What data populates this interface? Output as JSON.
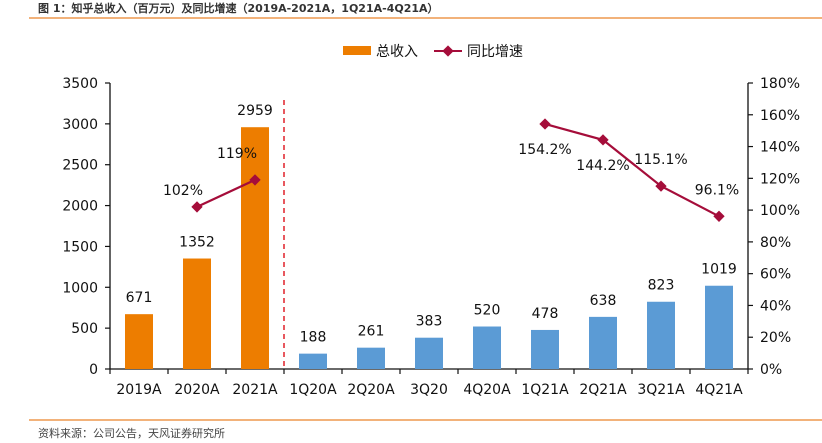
{
  "figure": {
    "title": "图 1：知乎总收入（百万元）及同比增速（2019A-2021A，1Q21A-4Q21A）",
    "source": "资料来源：公司公告，天风证券研究所"
  },
  "chart_data": {
    "type": "bar",
    "title": "",
    "categories": [
      "2019A",
      "2020A",
      "2021A",
      "1Q20A",
      "2Q20A",
      "3Q20",
      "4Q20A",
      "1Q21A",
      "2Q21A",
      "3Q21A",
      "4Q21A"
    ],
    "series": [
      {
        "name": "总收入",
        "type": "bar",
        "axis": "left",
        "values": [
          671,
          1352,
          2959,
          188,
          261,
          383,
          520,
          478,
          638,
          823,
          1019
        ],
        "labels": [
          "671",
          "1352",
          "2959",
          "188",
          "261",
          "383",
          "520",
          "478",
          "638",
          "823",
          "1019"
        ],
        "colors": [
          "#ed7d00",
          "#ed7d00",
          "#ed7d00",
          "#5b9bd5",
          "#5b9bd5",
          "#5b9bd5",
          "#5b9bd5",
          "#5b9bd5",
          "#5b9bd5",
          "#5b9bd5",
          "#5b9bd5"
        ],
        "legend_color": "#ed7d00"
      },
      {
        "name": "同比增速",
        "type": "line",
        "axis": "right",
        "color": "#a50d3a",
        "segments": [
          {
            "indices": [
              1,
              2
            ],
            "values": [
              102,
              119
            ],
            "labels": [
              "102%",
              "119%"
            ]
          },
          {
            "indices": [
              7,
              8,
              9,
              10
            ],
            "values": [
              154.2,
              144.2,
              115.1,
              96.1
            ],
            "labels": [
              "154.2%",
              "144.2%",
              "115.1%",
              "96.1%"
            ]
          }
        ]
      }
    ],
    "ylim_left": [
      0,
      3500
    ],
    "yticks_left": [
      "0",
      "500",
      "1000",
      "1500",
      "2000",
      "2500",
      "3000",
      "3500"
    ],
    "ylim_right": [
      0,
      180
    ],
    "yticks_right": [
      "0%",
      "20%",
      "40%",
      "60%",
      "80%",
      "100%",
      "120%",
      "140%",
      "160%",
      "180%"
    ],
    "divider_after_index": 2,
    "divider_color": "#e0202a",
    "grid": false,
    "legend": "top-center",
    "xlabel": "",
    "ylabel": ""
  }
}
